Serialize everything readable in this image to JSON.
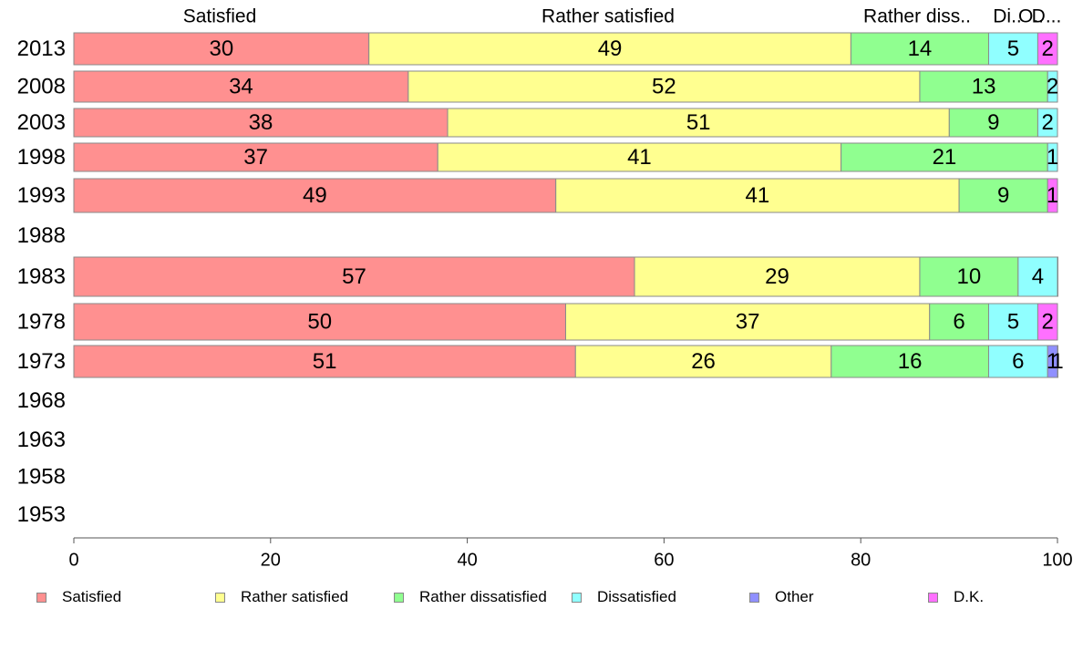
{
  "chart_data": {
    "type": "bar",
    "orientation": "horizontal",
    "stacked": true,
    "categories": [
      "2013",
      "2008",
      "2003",
      "1998",
      "1993",
      "1988",
      "1983",
      "1978",
      "1973",
      "1968",
      "1963",
      "1958",
      "1953"
    ],
    "series": [
      {
        "name": "Satisfied",
        "color": "#ff9090",
        "values": [
          30,
          34,
          38,
          37,
          49,
          null,
          57,
          50,
          51,
          null,
          null,
          null,
          null
        ],
        "labels": [
          "30",
          "34",
          "38",
          "37",
          "49",
          "",
          "57",
          "50",
          "51",
          "",
          "",
          "",
          ""
        ]
      },
      {
        "name": "Rather satisfied",
        "color": "#ffff90",
        "values": [
          49,
          52,
          51,
          41,
          41,
          null,
          29,
          37,
          26,
          null,
          null,
          null,
          null
        ],
        "labels": [
          "49",
          "52",
          "51",
          "41",
          "41",
          "",
          "29",
          "37",
          "26",
          "",
          "",
          "",
          ""
        ]
      },
      {
        "name": "Rather dissatisfied",
        "color": "#90ff90",
        "values": [
          14,
          13,
          9,
          21,
          9,
          null,
          10,
          6,
          16,
          null,
          null,
          null,
          null
        ],
        "labels": [
          "14",
          "13",
          "9",
          "21",
          "9",
          "",
          "10",
          "6",
          "16",
          "",
          "",
          "",
          ""
        ]
      },
      {
        "name": "Dissatisfied",
        "color": "#90ffff",
        "values": [
          5,
          2,
          2,
          1,
          0,
          null,
          4,
          5,
          6,
          null,
          null,
          null,
          null
        ],
        "labels": [
          "5",
          "2",
          "2",
          "1",
          "",
          "",
          "4",
          "5",
          "6",
          "",
          "",
          "",
          ""
        ]
      },
      {
        "name": "Other",
        "color": "#9090ff",
        "values": [
          0,
          0,
          0,
          0,
          0,
          null,
          0,
          0,
          1,
          null,
          null,
          null,
          null
        ],
        "labels": [
          "",
          "",
          "",
          "",
          "",
          "",
          "",
          "",
          "1",
          "",
          "",
          "",
          ""
        ]
      },
      {
        "name": "D.K.",
        "color": "#ff70ff",
        "values": [
          2,
          0,
          0,
          0,
          1,
          null,
          0.4,
          2,
          1,
          null,
          null,
          null,
          null
        ],
        "labels": [
          "2",
          "",
          "",
          "",
          "1",
          "",
          "",
          "2",
          "1",
          "",
          "",
          "",
          ""
        ]
      }
    ],
    "top_labels": [
      "Satisfied",
      "Rather satisfied",
      "Rather diss..",
      "Di..",
      "O..",
      "D..."
    ],
    "xlim": [
      0,
      100
    ],
    "xticks": [
      "0",
      "20",
      "40",
      "60",
      "80",
      "100"
    ],
    "xlabel": "",
    "ylabel": "",
    "title": "",
    "grid": false,
    "legend": "bottom"
  },
  "legend": {
    "items": [
      {
        "label": "Satisfied",
        "color": "#ff9090"
      },
      {
        "label": "Rather satisfied",
        "color": "#ffff90"
      },
      {
        "label": "Rather dissatisfied",
        "color": "#90ff90"
      },
      {
        "label": "Dissatisfied",
        "color": "#90ffff"
      },
      {
        "label": "Other",
        "color": "#9090ff"
      },
      {
        "label": "D.K.",
        "color": "#ff70ff"
      }
    ]
  }
}
